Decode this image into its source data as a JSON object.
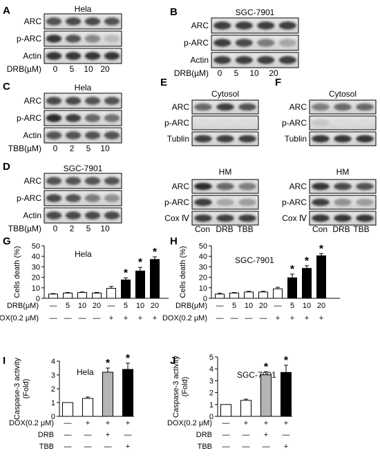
{
  "blots": [
    {
      "letter": "A",
      "title": "Hela",
      "rows": [
        "ARC",
        "p-ARC",
        "Actin"
      ],
      "cond_label": "DRB(µM)",
      "lanes": [
        "0",
        "5",
        "10",
        "20"
      ],
      "intensity": [
        [
          0.7,
          0.75,
          0.75,
          0.7
        ],
        [
          0.85,
          0.7,
          0.45,
          0.2
        ],
        [
          0.85,
          0.85,
          0.85,
          0.85
        ]
      ]
    },
    {
      "letter": "B",
      "title": "SGC-7901",
      "rows": [
        "ARC",
        "p-ARC",
        "Actin"
      ],
      "cond_label": "DRB(µM)",
      "lanes": [
        "0",
        "5",
        "10",
        "20"
      ],
      "intensity": [
        [
          0.8,
          0.8,
          0.8,
          0.8
        ],
        [
          0.8,
          0.75,
          0.5,
          0.3
        ],
        [
          0.8,
          0.8,
          0.8,
          0.8
        ]
      ]
    },
    {
      "letter": "C",
      "title": "Hela",
      "rows": [
        "ARC",
        "p-ARC",
        "Actin"
      ],
      "cond_label": "TBB(µM)",
      "lanes": [
        "0",
        "2",
        "5",
        "10"
      ],
      "intensity": [
        [
          0.75,
          0.75,
          0.7,
          0.7
        ],
        [
          0.9,
          0.8,
          0.6,
          0.55
        ],
        [
          0.7,
          0.7,
          0.7,
          0.7
        ]
      ]
    },
    {
      "letter": "D",
      "title": "SGC-7901",
      "rows": [
        "ARC",
        "p-ARC",
        "Actin"
      ],
      "cond_label": "TBB(µM)",
      "lanes": [
        "0",
        "2",
        "5",
        "10"
      ],
      "intensity": [
        [
          0.7,
          0.7,
          0.7,
          0.7
        ],
        [
          0.75,
          0.7,
          0.5,
          0.4
        ],
        [
          0.75,
          0.75,
          0.75,
          0.75
        ]
      ]
    },
    {
      "letter": "E",
      "groups": [
        {
          "title": "Cytosol",
          "rows": [
            "ARC",
            "p-ARC",
            "Tublin"
          ],
          "intensity": [
            [
              0.6,
              0.8,
              0.7
            ],
            [
              0.05,
              0.05,
              0.05
            ],
            [
              0.8,
              0.8,
              0.8
            ]
          ]
        },
        {
          "title": "HM",
          "rows": [
            "ARC",
            "p-ARC",
            "Cox Ⅳ"
          ],
          "intensity": [
            [
              0.9,
              0.6,
              0.5
            ],
            [
              0.8,
              0.3,
              0.35
            ],
            [
              0.8,
              0.8,
              0.8
            ]
          ]
        }
      ],
      "lanes": [
        "Con",
        "DRB",
        "TBB"
      ]
    },
    {
      "letter": "F",
      "groups": [
        {
          "title": "Cytosol",
          "rows": [
            "ARC",
            "p-ARC",
            "Tublin"
          ],
          "intensity": [
            [
              0.5,
              0.6,
              0.6
            ],
            [
              0.15,
              0.05,
              0.05
            ],
            [
              0.85,
              0.85,
              0.85
            ]
          ]
        },
        {
          "title": "HM",
          "rows": [
            "ARC",
            "p-ARC",
            "Cox Ⅳ"
          ],
          "intensity": [
            [
              0.85,
              0.75,
              0.7
            ],
            [
              0.8,
              0.4,
              0.35
            ],
            [
              0.85,
              0.85,
              0.85
            ]
          ]
        }
      ],
      "lanes": [
        "Con",
        "DRB",
        "TBB"
      ]
    }
  ],
  "chart_data": [
    {
      "letter": "G",
      "type": "bar",
      "title": "Hela",
      "ylabel": "Cells death (%)",
      "ylim": [
        0,
        50
      ],
      "yticks": [
        0,
        10,
        20,
        30,
        40,
        50
      ],
      "values": [
        4,
        5,
        5.5,
        5,
        9.5,
        17.5,
        26,
        37
      ],
      "errors": [
        0.5,
        0.5,
        0.5,
        0.6,
        1.8,
        2.0,
        3.5,
        2.5
      ],
      "fills": [
        "white",
        "white",
        "white",
        "white",
        "white",
        "black",
        "black",
        "black"
      ],
      "star": [
        false,
        false,
        false,
        false,
        false,
        true,
        true,
        true
      ],
      "condition_rows": [
        {
          "label": "DRB(μM)",
          "marks": [
            "—",
            "5",
            "10",
            "20",
            "—",
            "5",
            "10",
            "20"
          ]
        },
        {
          "label": "DOX(0.2 μM)",
          "marks": [
            "—",
            "—",
            "—",
            "—",
            "+",
            "+",
            "+",
            "+"
          ]
        }
      ]
    },
    {
      "letter": "H",
      "type": "bar",
      "title": "SGC-7901",
      "ylabel": "Cells death (%)",
      "ylim": [
        0,
        50
      ],
      "yticks": [
        0,
        10,
        20,
        30,
        40,
        50
      ],
      "values": [
        4,
        5,
        6,
        6,
        9,
        19.5,
        28.5,
        40.5
      ],
      "errors": [
        0.8,
        0.5,
        0.7,
        0.7,
        1.5,
        3.5,
        2.5,
        2.0
      ],
      "fills": [
        "white",
        "white",
        "white",
        "white",
        "white",
        "black",
        "black",
        "black"
      ],
      "star": [
        false,
        false,
        false,
        false,
        false,
        true,
        true,
        true
      ],
      "condition_rows": [
        {
          "label": "DRB(μM)",
          "marks": [
            "—",
            "5",
            "10",
            "20",
            "—",
            "5",
            "10",
            "20"
          ]
        },
        {
          "label": "DOX(0.2 μM)",
          "marks": [
            "—",
            "—",
            "—",
            "—",
            "+",
            "+",
            "+",
            "+"
          ]
        }
      ]
    },
    {
      "letter": "I",
      "type": "bar",
      "title": "Hela",
      "ylabel": "Caspase-3 activity (Fold)",
      "ylim": [
        0,
        4
      ],
      "yticks": [
        0,
        1,
        2,
        3,
        4
      ],
      "values": [
        1,
        1.3,
        3.2,
        3.4
      ],
      "errors": [
        0,
        0.1,
        0.3,
        0.45
      ],
      "fills": [
        "white",
        "white",
        "gray",
        "black"
      ],
      "star": [
        false,
        false,
        true,
        true
      ],
      "condition_rows": [
        {
          "label": "DOX(0.2 μM)",
          "marks": [
            "—",
            "+",
            "+",
            "+"
          ]
        },
        {
          "label": "DRB",
          "marks": [
            "—",
            "—",
            "+",
            "—"
          ]
        },
        {
          "label": "TBB",
          "marks": [
            "—",
            "—",
            "—",
            "+"
          ]
        }
      ]
    },
    {
      "letter": "J",
      "type": "bar",
      "title": "SGC-7901",
      "ylabel": "Caspase-3 activity (Fold)",
      "ylim": [
        0,
        5
      ],
      "yticks": [
        0,
        1,
        2,
        3,
        4,
        5
      ],
      "values": [
        1,
        1.35,
        3.5,
        3.7
      ],
      "errors": [
        0,
        0.1,
        0.25,
        0.6
      ],
      "fills": [
        "white",
        "white",
        "gray",
        "black"
      ],
      "star": [
        false,
        false,
        true,
        true
      ],
      "condition_rows": [
        {
          "label": "DOX(0.2 μM)",
          "marks": [
            "—",
            "+",
            "+",
            "+"
          ]
        },
        {
          "label": "DRB",
          "marks": [
            "—",
            "—",
            "+",
            "—"
          ]
        },
        {
          "label": "TBB",
          "marks": [
            "—",
            "—",
            "—",
            "+"
          ]
        }
      ]
    }
  ]
}
